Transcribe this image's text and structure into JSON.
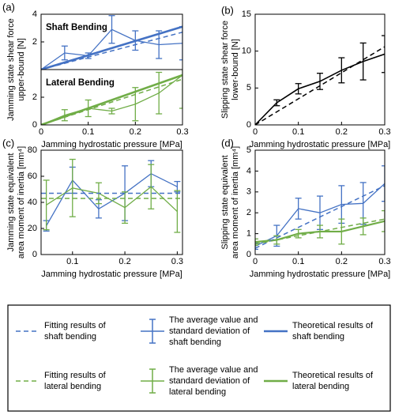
{
  "chart_data": [
    {
      "type": "line",
      "panel": "(a)",
      "annotation": "Shaft Bending",
      "ylabel": [
        "Jamming state shear force",
        "upper-bound [N]"
      ],
      "xlim": [
        0,
        0.3
      ],
      "ylim": [
        0,
        4
      ],
      "yticks": [
        2,
        4
      ],
      "series": [
        {
          "color": "#4472c4",
          "style": "solid",
          "linewidth": 1.3,
          "x": [
            0,
            0.05,
            0.1,
            0.15,
            0.2,
            0.25,
            0.3
          ],
          "values": [
            0,
            1.2,
            1.0,
            2.9,
            2.1,
            1.8,
            1.9
          ],
          "errors": [
            null,
            0.5,
            0.2,
            1.0,
            0.7,
            1.0,
            1.2
          ]
        },
        {
          "color": "#4472c4",
          "style": "dashed",
          "linewidth": 1.5,
          "x": [
            0,
            0.3
          ],
          "values": [
            0,
            2.7
          ]
        },
        {
          "color": "#4472c4",
          "style": "solid",
          "linewidth": 2.6,
          "x": [
            0,
            0.3
          ],
          "values": [
            0,
            3.1
          ]
        }
      ]
    },
    {
      "type": "line",
      "annotation": "Lateral Bending",
      "xlabel": "Jamming hydrostatic pressure [MPa]",
      "xlim": [
        0,
        0.3
      ],
      "xticks": [
        0,
        0.1,
        0.2,
        0.3
      ],
      "ylim": [
        0,
        4
      ],
      "yticks": [
        0,
        2
      ],
      "series": [
        {
          "color": "#70ad47",
          "style": "solid",
          "linewidth": 1.3,
          "x": [
            0,
            0.05,
            0.1,
            0.15,
            0.2,
            0.25,
            0.3
          ],
          "values": [
            0,
            0.7,
            1.2,
            1.0,
            1.5,
            2.3,
            3.6
          ],
          "errors": [
            null,
            0.4,
            0.6,
            0.2,
            1.2,
            1.5,
            2.4
          ]
        },
        {
          "color": "#70ad47",
          "style": "dashed",
          "linewidth": 1.5,
          "x": [
            0,
            0.3
          ],
          "values": [
            0,
            3.3
          ]
        },
        {
          "color": "#70ad47",
          "style": "solid",
          "linewidth": 2.6,
          "x": [
            0,
            0.3
          ],
          "values": [
            0,
            3.6
          ]
        }
      ]
    },
    {
      "type": "line",
      "panel": "(b)",
      "ylabel": [
        "Slipping state shear force",
        "lower-bound [N]"
      ],
      "xlabel": "Jamming hydrostatic pressure [MPa]",
      "xlim": [
        0,
        0.3
      ],
      "xticks": [
        0,
        0.1,
        0.2,
        0.3
      ],
      "ylim": [
        0,
        15
      ],
      "yticks": [
        0,
        5,
        10,
        15
      ],
      "series": [
        {
          "color": "#000000",
          "style": "solid",
          "linewidth": 1.6,
          "x": [
            0,
            0.05,
            0.1,
            0.15,
            0.2,
            0.25,
            0.3
          ],
          "values": [
            0,
            3.0,
            4.9,
            5.9,
            7.4,
            8.6,
            9.6
          ],
          "errors": [
            null,
            0.4,
            0.7,
            1.1,
            1.7,
            2.5,
            2.5
          ]
        },
        {
          "color": "#000000",
          "style": "dashed",
          "linewidth": 1.5,
          "x": [
            0,
            0.3
          ],
          "values": [
            0,
            10.6
          ]
        }
      ]
    },
    {
      "type": "line",
      "panel": "(c)",
      "ylabel": [
        "Jamming state equivalent",
        "area moment of inertia [mm⁴]"
      ],
      "xlabel": "Jamming hydrostatic pressure [MPa]",
      "xlim": [
        0.04,
        0.31
      ],
      "xticks": [
        0.1,
        0.2,
        0.3
      ],
      "ylim": [
        0,
        80
      ],
      "yticks": [
        0,
        20,
        40,
        60,
        80
      ],
      "series": [
        {
          "color": "#4472c4",
          "style": "solid",
          "linewidth": 1.3,
          "x": [
            0.05,
            0.1,
            0.15,
            0.2,
            0.25,
            0.3
          ],
          "values": [
            22,
            57,
            35,
            47,
            62,
            52
          ],
          "errors": [
            4,
            10,
            7,
            21,
            10,
            4
          ]
        },
        {
          "color": "#70ad47",
          "style": "solid",
          "linewidth": 1.3,
          "x": [
            0.05,
            0.1,
            0.15,
            0.2,
            0.25,
            0.3
          ],
          "values": [
            38,
            51,
            47,
            36,
            52,
            33
          ],
          "errors": [
            19,
            22,
            8,
            12,
            17,
            16
          ]
        },
        {
          "color": "#4472c4",
          "style": "dashed",
          "linewidth": 1.5,
          "x": [
            0.04,
            0.31
          ],
          "values": [
            47,
            47
          ]
        },
        {
          "color": "#70ad47",
          "style": "dashed",
          "linewidth": 1.5,
          "x": [
            0.04,
            0.31
          ],
          "values": [
            43,
            43
          ]
        }
      ]
    },
    {
      "type": "line",
      "panel": "(d)",
      "ylabel": [
        "Slipping state equivalent",
        "area moment of inertia [mm⁴]"
      ],
      "xlabel": "Jamming hydrostatic pressure [MPa]",
      "xlim": [
        0,
        0.3
      ],
      "xticks": [
        0,
        0.1,
        0.2,
        0.3
      ],
      "ylim": [
        0,
        5
      ],
      "yticks": [
        0,
        1,
        2,
        3,
        4,
        5
      ],
      "series": [
        {
          "color": "#4472c4",
          "style": "solid",
          "linewidth": 1.3,
          "x": [
            0,
            0.05,
            0.1,
            0.15,
            0.2,
            0.25,
            0.3
          ],
          "values": [
            0.4,
            0.9,
            2.2,
            2.0,
            2.4,
            2.45,
            3.4
          ],
          "errors": [
            0.15,
            0.5,
            0.5,
            0.8,
            0.9,
            1.0,
            0.85
          ]
        },
        {
          "color": "#70ad47",
          "style": "solid",
          "linewidth": 2.2,
          "x": [
            0,
            0.05,
            0.1,
            0.15,
            0.2,
            0.25,
            0.3
          ],
          "values": [
            0.6,
            0.7,
            1.0,
            1.1,
            1.1,
            1.35,
            1.6
          ],
          "errors": [
            0.15,
            0.2,
            0.2,
            0.3,
            0.6,
            0.4,
            0.5
          ]
        },
        {
          "color": "#4472c4",
          "style": "dashed",
          "linewidth": 1.5,
          "x": [
            0,
            0.3
          ],
          "values": [
            0.3,
            3.3
          ]
        },
        {
          "color": "#70ad47",
          "style": "dashed",
          "linewidth": 1.5,
          "x": [
            0,
            0.3
          ],
          "values": [
            0.5,
            1.7
          ]
        }
      ]
    }
  ],
  "legend": {
    "entries": [
      {
        "style": "dashed",
        "color": "#4472c4",
        "lines": [
          "Fitting results of",
          "shaft bending"
        ]
      },
      {
        "style": "errorbar",
        "color": "#4472c4",
        "lines": [
          "The average value and",
          "standard deviation of",
          "shaft bending"
        ]
      },
      {
        "style": "solid",
        "color": "#4472c4",
        "lines": [
          "Theoretical results of",
          "shaft bending"
        ]
      },
      {
        "style": "dashed",
        "color": "#70ad47",
        "lines": [
          "Fitting results of",
          "lateral bending"
        ]
      },
      {
        "style": "errorbar",
        "color": "#70ad47",
        "lines": [
          "The average value and",
          "standard deviation of",
          "lateral bending"
        ]
      },
      {
        "style": "solid",
        "color": "#70ad47",
        "lines": [
          "Theoretical results of",
          "lateral bending"
        ]
      }
    ]
  }
}
